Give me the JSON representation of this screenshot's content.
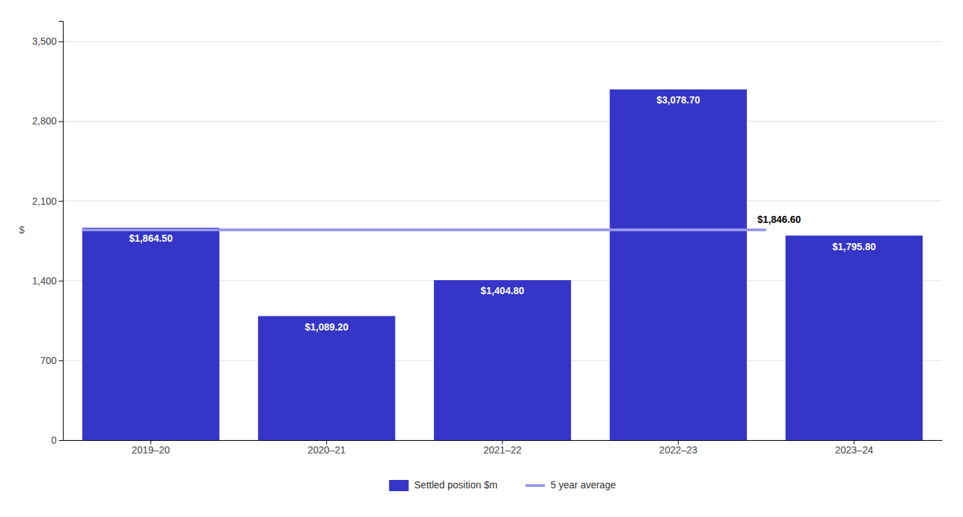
{
  "chart_data": {
    "type": "bar",
    "categories": [
      "2019–20",
      "2020–21",
      "2021–22",
      "2022–23",
      "2023–24"
    ],
    "series": [
      {
        "name": "Settled position $m",
        "type": "bar",
        "color": "#3535c8",
        "values": [
          1864.5,
          1089.2,
          1404.8,
          3078.7,
          1795.8
        ],
        "value_labels": [
          "$1,864.50",
          "$1,089.20",
          "$1,404.80",
          "$3,078.70",
          "$1,795.80"
        ]
      },
      {
        "name": "5 year average",
        "type": "line",
        "color": "#9999ee",
        "values": [
          1846.6,
          1846.6,
          1846.6,
          1846.6,
          null
        ],
        "value_labels": [
          null,
          null,
          null,
          "$1,846.60",
          null
        ]
      }
    ],
    "ylabel": "$",
    "ylim": [
      0,
      3680
    ],
    "yticks": [
      0,
      700,
      {
        "value": 1400,
        "label": "1,400"
      },
      {
        "value": 2100,
        "label": "2,100"
      },
      {
        "value": 2800,
        "label": "2,800"
      },
      {
        "value": 3500,
        "label": "3,500"
      }
    ],
    "grid": true,
    "data_labels": true,
    "legend": "bottom"
  }
}
